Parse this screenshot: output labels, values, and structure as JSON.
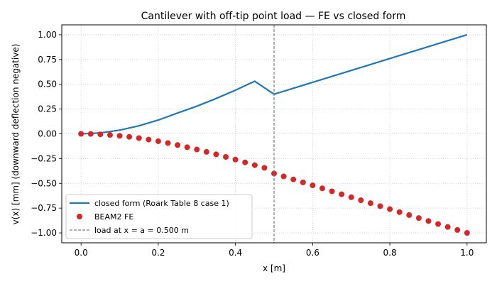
{
  "chart_data": {
    "type": "line",
    "title": "Cantilever with off-tip point load — FE vs closed form",
    "xlabel": "x [m]",
    "ylabel": "v(x)  [mm]   (downward deflection negative)",
    "xlim": [
      -0.05,
      1.05
    ],
    "ylim": [
      -1.1,
      1.1
    ],
    "xticks": [
      0.0,
      0.2,
      0.4,
      0.6,
      0.8,
      1.0
    ],
    "xtick_labels": [
      "0.0",
      "0.2",
      "0.4",
      "0.6",
      "0.8",
      "1.0"
    ],
    "yticks": [
      -1.0,
      -0.75,
      -0.5,
      -0.25,
      0.0,
      0.25,
      0.5,
      0.75,
      1.0
    ],
    "ytick_labels": [
      "−1.00",
      "−0.75",
      "−0.50",
      "−0.25",
      "0.00",
      "0.25",
      "0.50",
      "0.75",
      "1.00"
    ],
    "grid": true,
    "legend_position": "lower-left",
    "series": [
      {
        "name": "closed form (Roark Table 8 case 1)",
        "kind": "line",
        "color": "#1f77b4",
        "x": [
          0.0,
          0.05,
          0.1,
          0.15,
          0.2,
          0.25,
          0.3,
          0.35,
          0.4,
          0.45,
          0.5,
          0.55,
          0.6,
          0.65,
          0.7,
          0.75,
          0.8,
          0.85,
          0.9,
          0.95,
          1.0
        ],
        "values": [
          0.0,
          0.0095,
          0.037,
          0.081,
          0.139,
          0.21,
          0.279,
          0.357,
          0.441,
          0.531,
          0.4,
          0.46,
          0.52,
          0.58,
          0.64,
          0.7,
          0.76,
          0.82,
          0.88,
          0.94,
          1.0
        ]
      },
      {
        "name": "BEAM2 FE",
        "kind": "scatter",
        "color": "#d62728",
        "x": [
          0.0,
          0.025,
          0.05,
          0.075,
          0.1,
          0.125,
          0.15,
          0.175,
          0.2,
          0.225,
          0.25,
          0.275,
          0.3,
          0.325,
          0.35,
          0.375,
          0.4,
          0.425,
          0.45,
          0.475,
          0.5,
          0.525,
          0.55,
          0.575,
          0.6,
          0.625,
          0.65,
          0.675,
          0.7,
          0.725,
          0.75,
          0.775,
          0.8,
          0.825,
          0.85,
          0.875,
          0.9,
          0.925,
          0.95,
          0.975,
          1.0
        ],
        "values": [
          0.0,
          -0.001,
          -0.005,
          -0.011,
          -0.02,
          -0.03,
          -0.043,
          -0.058,
          -0.075,
          -0.093,
          -0.113,
          -0.135,
          -0.158,
          -0.182,
          -0.207,
          -0.233,
          -0.26,
          -0.288,
          -0.316,
          -0.343,
          -0.4,
          -0.43,
          -0.46,
          -0.49,
          -0.52,
          -0.55,
          -0.58,
          -0.61,
          -0.64,
          -0.67,
          -0.7,
          -0.73,
          -0.76,
          -0.79,
          -0.82,
          -0.85,
          -0.88,
          -0.91,
          -0.94,
          -0.97,
          -1.0
        ]
      },
      {
        "name": "load at x = a = 0.500 m",
        "kind": "vline",
        "color": "#808080",
        "x": 0.5
      }
    ]
  }
}
